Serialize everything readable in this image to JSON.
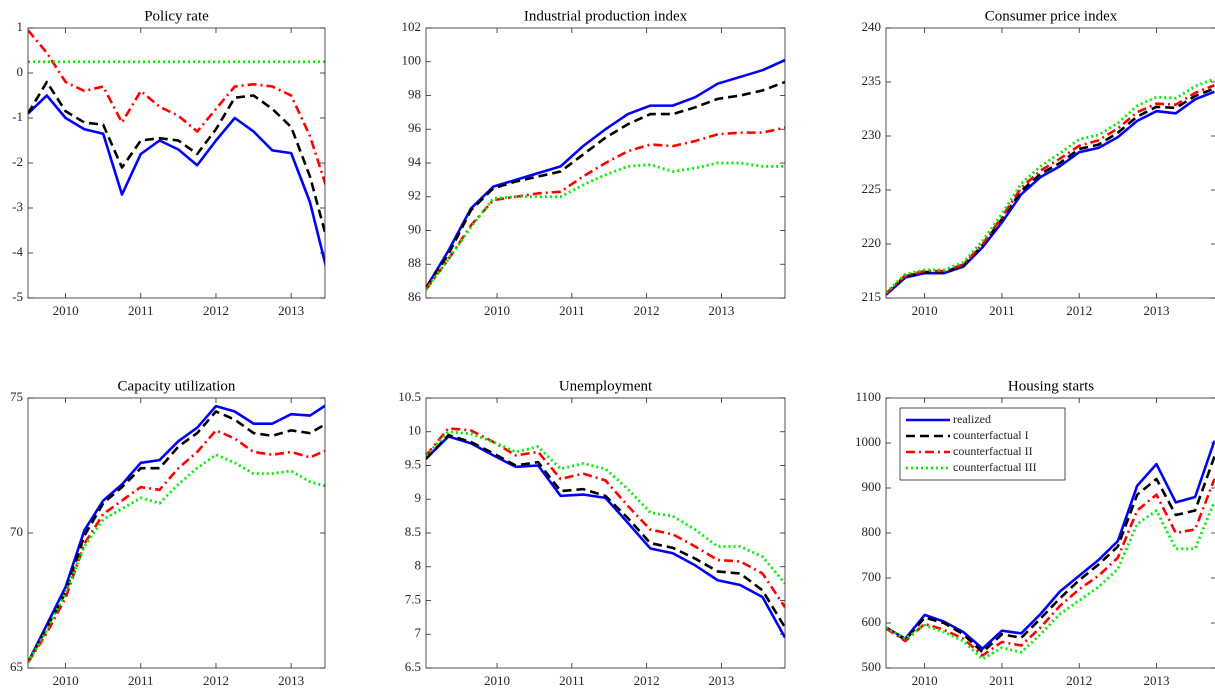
{
  "chart_data": [
    {
      "type": "line",
      "title": "Policy rate",
      "x": [
        2009.5,
        2009.75,
        2010,
        2010.25,
        2010.5,
        2010.75,
        2011,
        2011.25,
        2011.5,
        2011.75,
        2012,
        2012.25,
        2012.5,
        2012.75,
        2013,
        2013.25,
        2013.5
      ],
      "xlim": [
        2009.5,
        2013.45
      ],
      "xticks": [
        2010,
        2011,
        2012,
        2013
      ],
      "ylim": [
        -5,
        1
      ],
      "yticks": [
        -5,
        -4,
        -3,
        -2,
        -1,
        0,
        1
      ],
      "series": [
        {
          "color": "#0000ff",
          "style": "solid",
          "values": [
            -0.9,
            -0.5,
            -1.0,
            -1.25,
            -1.35,
            -2.7,
            -1.8,
            -1.5,
            -1.7,
            -2.05,
            -1.5,
            -1.0,
            -1.3,
            -1.72,
            -1.78,
            -2.87,
            -4.55
          ]
        },
        {
          "color": "#000000",
          "style": "dashed",
          "values": [
            -0.9,
            -0.2,
            -0.85,
            -1.1,
            -1.15,
            -2.1,
            -1.5,
            -1.45,
            -1.5,
            -1.8,
            -1.25,
            -0.55,
            -0.5,
            -0.8,
            -1.2,
            -2.3,
            -3.85
          ]
        },
        {
          "color": "#ff0000",
          "style": "dashdot",
          "values": [
            0.95,
            0.45,
            -0.2,
            -0.4,
            -0.3,
            -1.1,
            -0.4,
            -0.75,
            -0.95,
            -1.3,
            -0.8,
            -0.3,
            -0.25,
            -0.3,
            -0.5,
            -1.4,
            -2.7
          ]
        },
        {
          "color": "#00ee00",
          "style": "dotted",
          "values": [
            0.25,
            0.25,
            0.25,
            0.25,
            0.25,
            0.25,
            0.25,
            0.25,
            0.25,
            0.25,
            0.25,
            0.25,
            0.25,
            0.25,
            0.25,
            0.25,
            0.25
          ]
        }
      ]
    },
    {
      "type": "line",
      "title": "Industrial production index",
      "x": [
        2009.05,
        2009.35,
        2009.65,
        2009.95,
        2010.25,
        2010.55,
        2010.85,
        2011.15,
        2011.45,
        2011.75,
        2012.05,
        2012.35,
        2012.65,
        2012.95,
        2013.25,
        2013.55,
        2013.85
      ],
      "xlim": [
        2009.05,
        2013.85
      ],
      "xticks": [
        2010,
        2011,
        2012,
        2013
      ],
      "ylim": [
        86,
        102
      ],
      "yticks": [
        86,
        88,
        90,
        92,
        94,
        96,
        98,
        100,
        102
      ],
      "series": [
        {
          "color": "#0000ff",
          "style": "solid",
          "values": [
            86.6,
            88.8,
            91.3,
            92.6,
            93.0,
            93.4,
            93.8,
            95.0,
            96.0,
            96.9,
            97.4,
            97.4,
            97.9,
            98.7,
            99.1,
            99.5,
            100.1
          ]
        },
        {
          "color": "#000000",
          "style": "dashed",
          "values": [
            86.6,
            88.6,
            91.2,
            92.5,
            92.9,
            93.2,
            93.5,
            94.5,
            95.5,
            96.3,
            96.9,
            96.9,
            97.3,
            97.8,
            98.0,
            98.3,
            98.8
          ]
        },
        {
          "color": "#ff0000",
          "style": "dashdot",
          "values": [
            86.5,
            88.3,
            90.3,
            91.8,
            92.0,
            92.2,
            92.3,
            93.2,
            94.0,
            94.7,
            95.1,
            95.0,
            95.3,
            95.7,
            95.8,
            95.8,
            96.1
          ]
        },
        {
          "color": "#00ee00",
          "style": "dotted",
          "values": [
            86.5,
            88.3,
            90.2,
            91.9,
            92.0,
            92.0,
            92.0,
            92.7,
            93.3,
            93.8,
            93.9,
            93.5,
            93.7,
            94.0,
            94.0,
            93.8,
            93.8
          ]
        }
      ]
    },
    {
      "type": "line",
      "title": "Consumer price index",
      "x": [
        2009.5,
        2009.75,
        2010,
        2010.25,
        2010.5,
        2010.75,
        2011,
        2011.25,
        2011.5,
        2011.75,
        2012,
        2012.25,
        2012.5,
        2012.75,
        2013,
        2013.25,
        2013.5,
        2013.75
      ],
      "xlim": [
        2009.5,
        2013.77
      ],
      "xticks": [
        2010,
        2011,
        2012,
        2013
      ],
      "ylim": [
        215,
        240
      ],
      "yticks": [
        215,
        220,
        225,
        230,
        235,
        240
      ],
      "series": [
        {
          "color": "#0000ff",
          "style": "solid",
          "values": [
            215.3,
            216.9,
            217.3,
            217.3,
            217.9,
            219.7,
            222.0,
            224.6,
            226.2,
            227.2,
            228.5,
            228.9,
            229.9,
            231.4,
            232.3,
            232.1,
            233.4,
            234.1
          ]
        },
        {
          "color": "#000000",
          "style": "dashed",
          "values": [
            215.4,
            217.0,
            217.4,
            217.4,
            218.0,
            219.9,
            222.3,
            224.9,
            226.5,
            227.5,
            228.8,
            229.2,
            230.3,
            231.8,
            232.7,
            232.6,
            233.7,
            234.4
          ]
        },
        {
          "color": "#ff0000",
          "style": "dashdot",
          "values": [
            215.4,
            217.1,
            217.5,
            217.5,
            218.1,
            220.0,
            222.5,
            225.2,
            226.8,
            227.9,
            229.1,
            229.6,
            230.7,
            232.2,
            233.0,
            232.9,
            234.0,
            234.7
          ]
        },
        {
          "color": "#00ee00",
          "style": "dotted",
          "values": [
            215.5,
            217.2,
            217.6,
            217.6,
            218.3,
            220.3,
            222.8,
            225.6,
            227.2,
            228.4,
            229.7,
            230.1,
            231.2,
            232.8,
            233.6,
            233.5,
            234.6,
            235.3
          ]
        }
      ]
    },
    {
      "type": "line",
      "title": "Capacity utilization",
      "x": [
        2009.5,
        2009.75,
        2010,
        2010.25,
        2010.5,
        2010.75,
        2011,
        2011.25,
        2011.5,
        2011.75,
        2012,
        2012.25,
        2012.5,
        2012.75,
        2013,
        2013.25,
        2013.5
      ],
      "xlim": [
        2009.5,
        2013.45
      ],
      "xticks": [
        2010,
        2011,
        2012,
        2013
      ],
      "ylim": [
        65,
        75
      ],
      "yticks": [
        65,
        70,
        75
      ],
      "series": [
        {
          "color": "#0000ff",
          "style": "solid",
          "values": [
            65.2,
            66.6,
            68.0,
            70.1,
            71.2,
            71.8,
            72.6,
            72.7,
            73.4,
            73.9,
            74.7,
            74.5,
            74.05,
            74.05,
            74.4,
            74.35,
            74.8
          ]
        },
        {
          "color": "#000000",
          "style": "dashed",
          "values": [
            65.2,
            66.5,
            67.8,
            69.9,
            71.1,
            71.7,
            72.4,
            72.4,
            73.2,
            73.7,
            74.5,
            74.2,
            73.7,
            73.6,
            73.8,
            73.7,
            74.1
          ]
        },
        {
          "color": "#ff0000",
          "style": "dashdot",
          "values": [
            65.2,
            66.3,
            67.6,
            69.6,
            70.7,
            71.2,
            71.7,
            71.6,
            72.4,
            73.0,
            73.8,
            73.5,
            73.0,
            72.9,
            73.0,
            72.8,
            73.1
          ]
        },
        {
          "color": "#00ee00",
          "style": "dotted",
          "values": [
            65.2,
            66.4,
            67.8,
            69.5,
            70.5,
            70.9,
            71.3,
            71.1,
            71.8,
            72.4,
            72.9,
            72.6,
            72.2,
            72.2,
            72.3,
            71.9,
            71.7
          ]
        }
      ]
    },
    {
      "type": "line",
      "title": "Unemployment",
      "x": [
        2009.05,
        2009.35,
        2009.65,
        2009.95,
        2010.25,
        2010.55,
        2010.85,
        2011.15,
        2011.45,
        2011.75,
        2012.05,
        2012.35,
        2012.65,
        2012.95,
        2013.25,
        2013.55,
        2013.85
      ],
      "xlim": [
        2009.05,
        2013.85
      ],
      "xticks": [
        2010,
        2011,
        2012,
        2013
      ],
      "ylim": [
        6.5,
        10.5
      ],
      "yticks": [
        6.5,
        7,
        7.5,
        8,
        8.5,
        9,
        9.5,
        10,
        10.5
      ],
      "series": [
        {
          "color": "#0000ff",
          "style": "solid",
          "values": [
            9.6,
            9.93,
            9.83,
            9.65,
            9.48,
            9.5,
            9.05,
            9.07,
            9.02,
            8.65,
            8.27,
            8.2,
            8.02,
            7.8,
            7.73,
            7.55,
            6.95
          ]
        },
        {
          "color": "#000000",
          "style": "dashed",
          "values": [
            9.6,
            9.95,
            9.85,
            9.68,
            9.5,
            9.55,
            9.12,
            9.15,
            9.05,
            8.72,
            8.35,
            8.28,
            8.12,
            7.93,
            7.9,
            7.65,
            7.1
          ]
        },
        {
          "color": "#ff0000",
          "style": "dashdot",
          "values": [
            9.65,
            10.05,
            10.02,
            9.85,
            9.65,
            9.7,
            9.3,
            9.38,
            9.28,
            8.9,
            8.55,
            8.48,
            8.3,
            8.1,
            8.08,
            7.9,
            7.4
          ]
        },
        {
          "color": "#00ee00",
          "style": "dotted",
          "values": [
            9.65,
            10.0,
            9.97,
            9.85,
            9.7,
            9.78,
            9.45,
            9.53,
            9.45,
            9.15,
            8.8,
            8.75,
            8.55,
            8.3,
            8.3,
            8.15,
            7.75
          ]
        }
      ]
    },
    {
      "type": "line",
      "title": "Housing starts",
      "x": [
        2009.5,
        2009.75,
        2010,
        2010.25,
        2010.5,
        2010.75,
        2011,
        2011.25,
        2011.5,
        2011.75,
        2012,
        2012.25,
        2012.5,
        2012.75,
        2013,
        2013.25,
        2013.5,
        2013.75
      ],
      "xlim": [
        2009.5,
        2013.77
      ],
      "xticks": [
        2010,
        2011,
        2012,
        2013
      ],
      "ylim": [
        500,
        1100
      ],
      "yticks": [
        500,
        600,
        700,
        800,
        900,
        1000,
        1100
      ],
      "legend": "upper left",
      "series": [
        {
          "name": "realized",
          "color": "#0000ff",
          "style": "solid",
          "values": [
            590,
            565,
            618,
            603,
            580,
            543,
            583,
            577,
            620,
            670,
            705,
            740,
            782,
            905,
            953,
            868,
            880,
            1005
          ]
        },
        {
          "name": "counterfactual I",
          "color": "#000000",
          "style": "dashed",
          "values": [
            590,
            562,
            612,
            600,
            575,
            535,
            575,
            567,
            610,
            655,
            695,
            730,
            770,
            885,
            920,
            840,
            850,
            970
          ]
        },
        {
          "name": "counterfactual II",
          "color": "#ff0000",
          "style": "dashdot",
          "values": [
            588,
            560,
            598,
            585,
            565,
            528,
            558,
            550,
            590,
            638,
            675,
            705,
            745,
            850,
            885,
            800,
            808,
            920
          ]
        },
        {
          "name": "counterfactual III",
          "color": "#00ee00",
          "style": "dotted",
          "values": [
            590,
            565,
            595,
            580,
            560,
            520,
            545,
            535,
            575,
            620,
            650,
            680,
            720,
            820,
            850,
            765,
            765,
            870
          ]
        }
      ]
    }
  ]
}
